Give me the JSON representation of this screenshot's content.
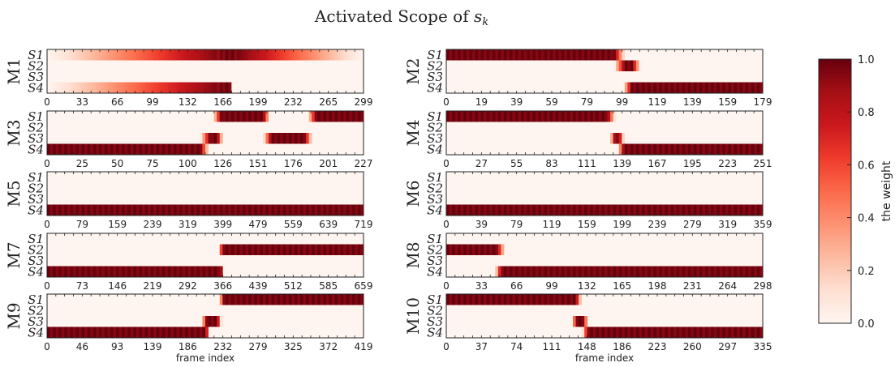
{
  "figure": {
    "title_main": "Activated Scope of ",
    "title_var": "s",
    "title_sub": "k",
    "colorbar": {
      "label": "the weight",
      "ticks": [
        "1.0",
        "0.8",
        "0.6",
        "0.4",
        "0.2",
        "0.0"
      ],
      "low_color": "#fff5f0",
      "high_color": "#67000d"
    }
  },
  "chart_data": [
    {
      "type": "heatmap",
      "name": "M1",
      "frames": 300,
      "xlabel": "",
      "rows": [
        "S1",
        "S2",
        "S3",
        "S4"
      ],
      "xticks": [
        "0",
        "33",
        "66",
        "99",
        "132",
        "166",
        "199",
        "232",
        "265",
        "299"
      ],
      "segments": [
        [
          0,
          170,
          176,
          299
        ],
        [
          166,
          174
        ],
        [],
        [
          0,
          168,
          174,
          0
        ]
      ]
    },
    {
      "type": "heatmap",
      "name": "M2",
      "frames": 180,
      "xlabel": "",
      "rows": [
        "S1",
        "S2",
        "S3",
        "S4"
      ],
      "xticks": [
        "0",
        "19",
        "39",
        "59",
        "79",
        "99",
        "119",
        "139",
        "159",
        "179"
      ],
      "segments": [
        [
          0,
          0,
          95,
          101
        ],
        [
          95,
          101,
          105,
          110
        ],
        [],
        [
          100,
          105,
          179,
          179
        ]
      ]
    },
    {
      "type": "heatmap",
      "name": "M3",
      "frames": 228,
      "xlabel": "",
      "rows": [
        "S1",
        "S2",
        "S3",
        "S4"
      ],
      "xticks": [
        "0",
        "25",
        "50",
        "75",
        "100",
        "126",
        "151",
        "176",
        "201",
        "227"
      ],
      "segments": [
        [
          119,
          125,
          155,
          160,
          187,
          193,
          227,
          227
        ],
        [],
        [
          110,
          117,
          122,
          126,
          155,
          161,
          185,
          190
        ],
        [
          0,
          0,
          110,
          116
        ]
      ]
    },
    {
      "type": "heatmap",
      "name": "M4",
      "frames": 252,
      "xlabel": "",
      "rows": [
        "S1",
        "S2",
        "S3",
        "S4"
      ],
      "xticks": [
        "0",
        "27",
        "55",
        "83",
        "111",
        "139",
        "167",
        "195",
        "223",
        "251"
      ],
      "segments": [
        [
          0,
          0,
          128,
          134
        ],
        [],
        [
          130,
          134,
          137,
          141
        ],
        [
          136,
          141,
          251,
          251
        ]
      ]
    },
    {
      "type": "heatmap",
      "name": "M5",
      "frames": 720,
      "xlabel": "",
      "rows": [
        "S1",
        "S2",
        "S3",
        "S4"
      ],
      "xticks": [
        "0",
        "79",
        "159",
        "239",
        "319",
        "399",
        "479",
        "559",
        "639",
        "719"
      ],
      "segments": [
        [],
        [],
        [],
        [
          0,
          0,
          719,
          719
        ]
      ]
    },
    {
      "type": "heatmap",
      "name": "M6",
      "frames": 360,
      "xlabel": "",
      "rows": [
        "S1",
        "S2",
        "S3",
        "S4"
      ],
      "xticks": [
        "0",
        "39",
        "79",
        "119",
        "159",
        "199",
        "239",
        "279",
        "319",
        "359"
      ],
      "segments": [
        [],
        [],
        [],
        [
          0,
          0,
          359,
          359
        ]
      ]
    },
    {
      "type": "heatmap",
      "name": "M7",
      "frames": 660,
      "xlabel": "",
      "rows": [
        "S1",
        "S2",
        "S3",
        "S4"
      ],
      "xticks": [
        "0",
        "73",
        "146",
        "219",
        "292",
        "366",
        "439",
        "512",
        "585",
        "659"
      ],
      "segments": [
        [],
        [
          360,
          364,
          659,
          659
        ],
        [],
        [
          0,
          0,
          362,
          366
        ]
      ]
    },
    {
      "type": "heatmap",
      "name": "M8",
      "frames": 299,
      "xlabel": "",
      "rows": [
        "S1",
        "S2",
        "S3",
        "S4"
      ],
      "xticks": [
        "0",
        "33",
        "66",
        "99",
        "132",
        "165",
        "198",
        "231",
        "264",
        "298"
      ],
      "segments": [
        [],
        [
          0,
          0,
          48,
          55
        ],
        [],
        [
          46,
          52,
          298,
          298
        ]
      ]
    },
    {
      "type": "heatmap",
      "name": "M9",
      "frames": 420,
      "xlabel": "frame index",
      "rows": [
        "S1",
        "S2",
        "S3",
        "S4"
      ],
      "xticks": [
        "0",
        "46",
        "93",
        "139",
        "186",
        "232",
        "279",
        "325",
        "372",
        "419"
      ],
      "segments": [
        [
          228,
          234,
          419,
          419
        ],
        [],
        [
          205,
          211,
          225,
          231
        ],
        [
          0,
          0,
          210,
          215
        ]
      ]
    },
    {
      "type": "heatmap",
      "name": "M10",
      "frames": 336,
      "xlabel": "frame index",
      "rows": [
        "S1",
        "S2",
        "S3",
        "S4"
      ],
      "xticks": [
        "0",
        "37",
        "74",
        "111",
        "148",
        "186",
        "223",
        "260",
        "297",
        "335"
      ],
      "segments": [
        [
          0,
          0,
          137,
          143
        ],
        [],
        [
          133,
          138,
          145,
          150
        ],
        [
          144,
          150,
          335,
          335
        ]
      ]
    }
  ]
}
